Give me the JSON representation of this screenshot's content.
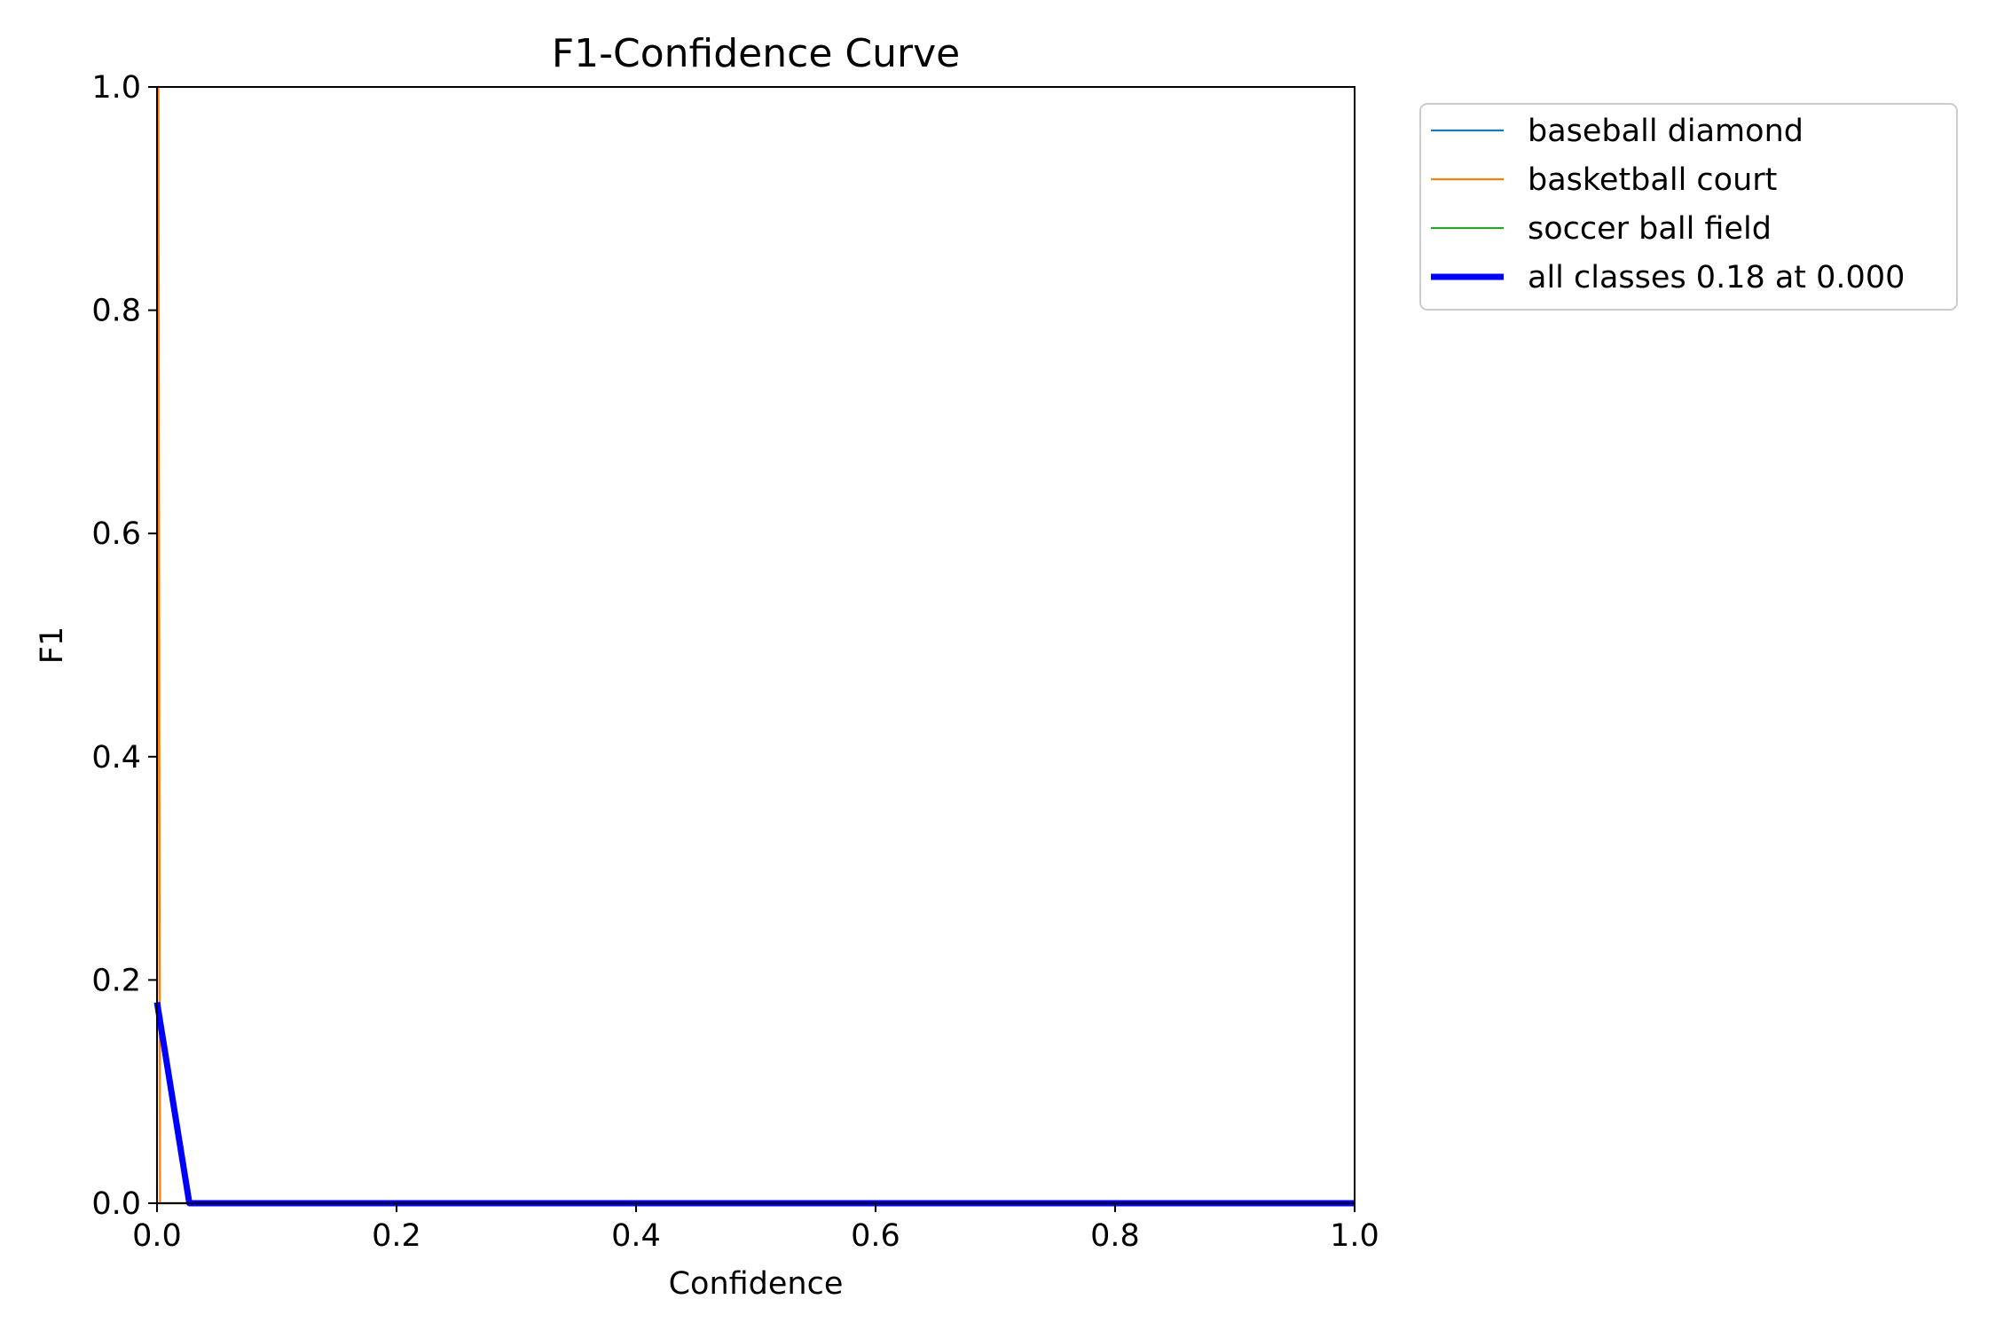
{
  "chart_data": {
    "type": "line",
    "title": "F1-Confidence Curve",
    "xlabel": "Confidence",
    "ylabel": "F1",
    "xlim": [
      0.0,
      1.0
    ],
    "ylim": [
      0.0,
      1.0
    ],
    "x_ticks": [
      0.0,
      0.2,
      0.4,
      0.6,
      0.8,
      1.0
    ],
    "y_ticks": [
      0.0,
      0.2,
      0.4,
      0.6,
      0.8,
      1.0
    ],
    "x_tick_labels": [
      "0.0",
      "0.2",
      "0.4",
      "0.6",
      "0.8",
      "1.0"
    ],
    "y_tick_labels": [
      "0.0",
      "0.2",
      "0.4",
      "0.6",
      "0.8",
      "1.0"
    ],
    "grid": false,
    "legend_position": "outside-top-right",
    "series": [
      {
        "name": "baseball diamond",
        "color": "#1f77b4",
        "x": [
          0.0,
          0.001,
          0.002,
          1.0
        ],
        "y": [
          0.0,
          0.0,
          0.0,
          0.0
        ]
      },
      {
        "name": "basketball court",
        "color": "#ff7f0e",
        "x": [
          0.0,
          0.0008,
          0.0012,
          0.0025,
          1.0
        ],
        "y": [
          0.0,
          1.0,
          1.0,
          0.0,
          0.0
        ]
      },
      {
        "name": "soccer ball field",
        "color": "#2ca02c",
        "x": [
          0.0,
          0.001,
          0.002,
          1.0
        ],
        "y": [
          0.0,
          0.0,
          0.0,
          0.0
        ]
      },
      {
        "name": "all classes 0.18 at 0.000",
        "color": "#0000ff",
        "emphasis": true,
        "x": [
          0.0,
          0.027,
          1.0
        ],
        "y": [
          0.18,
          0.0,
          0.0
        ]
      }
    ]
  }
}
